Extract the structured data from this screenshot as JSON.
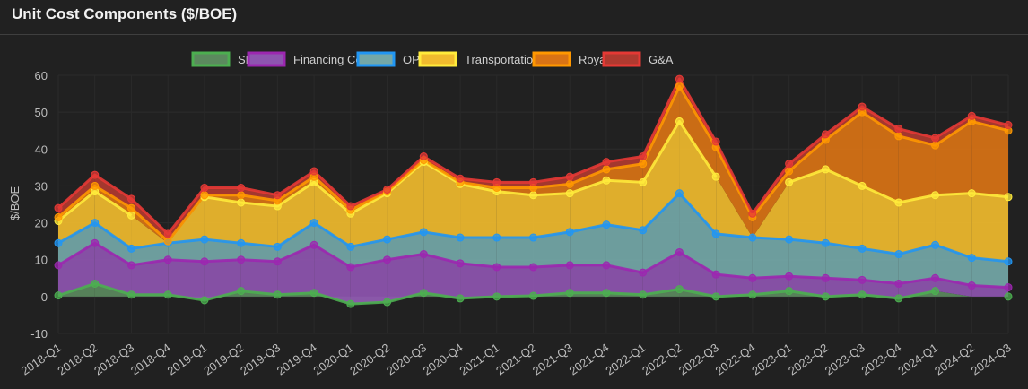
{
  "header": {
    "title": "Unit Cost Components ($/BOE)"
  },
  "chart_data": {
    "type": "area",
    "stacked": true,
    "title": "Unit Cost Components ($/BOE)",
    "xlabel": "",
    "ylabel": "$/BOE",
    "ylim": [
      -10,
      60
    ],
    "yticks": [
      60,
      50,
      40,
      30,
      20,
      10,
      0,
      -10
    ],
    "grid": true,
    "legend_position": "top",
    "categories": [
      "2018-Q1",
      "2018-Q2",
      "2018-Q3",
      "2018-Q4",
      "2019-Q1",
      "2019-Q2",
      "2019-Q3",
      "2019-Q4",
      "2020-Q1",
      "2020-Q2",
      "2020-Q3",
      "2020-Q4",
      "2021-Q1",
      "2021-Q2",
      "2021-Q3",
      "2021-Q4",
      "2022-Q1",
      "2022-Q2",
      "2022-Q3",
      "2022-Q4",
      "2023-Q1",
      "2023-Q2",
      "2023-Q3",
      "2023-Q4",
      "2024-Q1",
      "2024-Q2",
      "2024-Q3"
    ],
    "series": [
      {
        "name": "SBC",
        "color": "#4caf50",
        "fill": "#5b8a5e",
        "values": [
          0.3,
          3.5,
          0.5,
          0.5,
          -1,
          1.5,
          0.5,
          1,
          -2,
          -1.5,
          1,
          -0.5,
          0,
          0.2,
          1,
          1,
          0.5,
          2,
          0,
          0.5,
          1.5,
          0,
          0.5,
          -0.5,
          1.5,
          null,
          0
        ]
      },
      {
        "name": "Financing Costs",
        "color": "#9c27b0",
        "fill": "#8e55b0",
        "values": [
          8.2,
          11,
          8,
          9.5,
          10.5,
          8.5,
          9,
          13,
          10,
          11.5,
          10.5,
          9.5,
          8,
          7.8,
          7.5,
          7.5,
          6,
          10,
          6,
          4.5,
          4,
          5,
          4,
          4,
          3.5,
          3,
          2.5
        ]
      },
      {
        "name": "OPEX",
        "color": "#2196f3",
        "fill": "#74a8a8",
        "values": [
          6,
          5.5,
          4.5,
          4.5,
          6,
          4.5,
          4,
          6,
          5.5,
          5.5,
          6,
          7,
          8,
          8,
          9,
          11,
          11.5,
          16,
          11,
          11,
          10,
          9.5,
          8.5,
          8,
          9,
          7.5,
          7
        ]
      },
      {
        "name": "Transportation",
        "color": "#ffeb3b",
        "fill": "#f0bb2e",
        "values": [
          6,
          8.5,
          9,
          null,
          11.5,
          11,
          11,
          11,
          9,
          12.5,
          19,
          14.5,
          12.5,
          11.5,
          10.5,
          12,
          13,
          19.5,
          15.5,
          null,
          15.5,
          20,
          17,
          14,
          13.5,
          17.5,
          17.5
        ]
      },
      {
        "name": "Royalties",
        "color": "#ff9800",
        "fill": "#d97315",
        "values": [
          1,
          1.5,
          2,
          0.5,
          0.5,
          2,
          1.5,
          1.5,
          1,
          0.5,
          0.5,
          0.5,
          1,
          2,
          2.5,
          3,
          5,
          9.5,
          8,
          5.5,
          3,
          8,
          20,
          18,
          13.5,
          19.5,
          18
        ]
      },
      {
        "name": "G&A",
        "color": "#e53935",
        "fill": "#b03a30",
        "values": [
          2.5,
          3,
          2.5,
          2,
          2,
          2,
          1.5,
          1.5,
          1,
          0.5,
          1,
          1,
          1.5,
          1.5,
          2,
          2,
          2,
          2,
          1.5,
          1,
          2,
          1.5,
          1.5,
          2,
          2,
          1.5,
          1.5
        ]
      }
    ]
  }
}
